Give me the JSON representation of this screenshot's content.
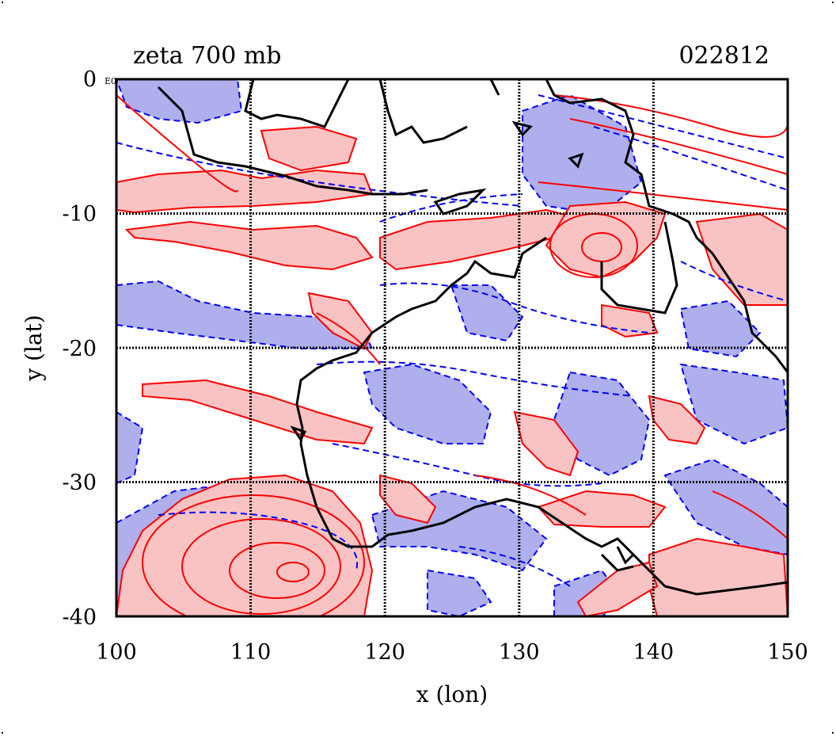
{
  "title_left": "zeta 700 mb",
  "title_right": "022812",
  "corner_label": "0",
  "corner_small_label": "E0",
  "x_axis": {
    "label": "x (lon)",
    "ticks": [
      "100",
      "110",
      "120",
      "130",
      "140",
      "150"
    ]
  },
  "y_axis": {
    "label": "y (lat)",
    "ticks": [
      "-10",
      "-20",
      "-30",
      "-40"
    ]
  },
  "chart_data": {
    "type": "contour",
    "variable": "zeta",
    "level": "700 mb",
    "xlim": [
      100,
      150
    ],
    "ylim": [
      -40,
      0
    ],
    "grid": true,
    "grid_x": [
      110,
      120,
      130,
      140
    ],
    "grid_y": [
      -10,
      -20,
      -30
    ],
    "colors": {
      "positive_fill": "#f9c3c3",
      "positive_line": "#ff0000",
      "negative_fill": "#afafee",
      "negative_line": "#0000ff",
      "coast": "#000000"
    }
  }
}
